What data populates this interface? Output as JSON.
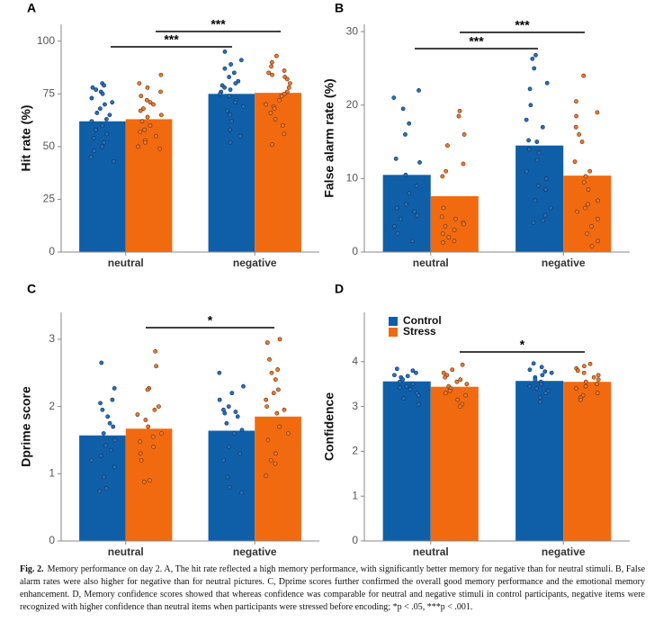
{
  "chart_data": [
    {
      "type": "bar",
      "panel": "A",
      "y_label": "Hit rate (%)",
      "categories": [
        "neutral",
        "negative"
      ],
      "ylim": [
        0,
        108
      ],
      "yticks": [
        0,
        25,
        50,
        75,
        100
      ],
      "series": [
        {
          "color": "#0f5fa8",
          "values": [
            62,
            75
          ],
          "points": [
            [
              80,
              79,
              78,
              77,
              76,
              75,
              73,
              71,
              70,
              68,
              66,
              65,
              63,
              62,
              60,
              58,
              56,
              54,
              52,
              50,
              48,
              45,
              43
            ],
            [
              95,
              91,
              89,
              87,
              85,
              83,
              81,
              80,
              79,
              78,
              77,
              76,
              75,
              74,
              72,
              71,
              69,
              67,
              65,
              62,
              58,
              55,
              52
            ]
          ]
        },
        {
          "color": "#f26a10",
          "values": [
            63,
            75.5
          ],
          "points": [
            [
              84,
              80,
              78,
              76,
              74,
              72,
              71,
              70,
              68,
              67,
              65,
              64,
              62,
              60,
              58,
              57,
              55,
              53,
              52,
              50,
              49
            ],
            [
              93,
              90,
              88,
              86,
              85,
              84,
              83,
              82,
              80,
              78,
              76,
              75,
              74,
              72,
              70,
              69,
              68,
              66,
              63,
              60,
              56,
              51
            ]
          ]
        }
      ],
      "annotations": [
        {
          "text": "***"
        },
        {
          "text": "***"
        }
      ]
    },
    {
      "type": "bar",
      "panel": "B",
      "y_label": "False alarm rate (%)",
      "categories": [
        "neutral",
        "negative"
      ],
      "ylim": [
        0,
        31
      ],
      "yticks": [
        0,
        10,
        20,
        30
      ],
      "series": [
        {
          "color": "#0f5fa8",
          "values": [
            10.5,
            14.5
          ],
          "points": [
            [
              22,
              21,
              19.5,
              17.5,
              16,
              12.7,
              12.2,
              10.5,
              9,
              8,
              6.5,
              6,
              5.5,
              5,
              4.5,
              3.5,
              2.5,
              1.5
            ],
            [
              26.8,
              26.3,
              25,
              23,
              22.2,
              20,
              18,
              17,
              15.2,
              15,
              14,
              13.5,
              12.5,
              11,
              10,
              9,
              8.5,
              7,
              6,
              5,
              4.3,
              4
            ]
          ]
        },
        {
          "color": "#f26a10",
          "values": [
            7.6,
            10.4
          ],
          "points": [
            [
              19.2,
              18.5,
              16,
              14.5,
              12,
              11,
              10.3,
              6,
              4.8,
              4.5,
              4,
              3.8,
              3.5,
              3,
              2.5,
              2,
              1.5,
              1.3
            ],
            [
              24,
              20.5,
              19,
              18.5,
              17,
              16,
              15,
              12.3,
              11,
              10.3,
              9.5,
              8.5,
              7,
              6.5,
              6,
              5.5,
              4.5,
              3.5,
              2.5,
              1.5,
              0.8
            ]
          ]
        }
      ],
      "annotations": [
        {
          "text": "***"
        },
        {
          "text": "***"
        }
      ]
    },
    {
      "type": "bar",
      "panel": "C",
      "y_label": "Dprime score",
      "categories": [
        "neutral",
        "negative"
      ],
      "ylim": [
        0,
        3.4
      ],
      "yticks": [
        0,
        1,
        2,
        3
      ],
      "series": [
        {
          "color": "#0f5fa8",
          "values": [
            1.57,
            1.64
          ],
          "points": [
            [
              2.65,
              2.27,
              2.1,
              2.05,
              1.95,
              1.85,
              1.75,
              1.7,
              1.6,
              1.5,
              1.42,
              1.35,
              1.27,
              1.2,
              1.1,
              0.95,
              0.78,
              0.74
            ],
            [
              2.5,
              2.3,
              2.2,
              2.1,
              2.0,
              1.95,
              1.92,
              1.9,
              1.85,
              1.75,
              1.65,
              1.6,
              1.4,
              1.3,
              1.2,
              0.95,
              0.8,
              0.72
            ]
          ]
        },
        {
          "color": "#f26a10",
          "values": [
            1.67,
            1.85
          ],
          "points": [
            [
              2.82,
              2.6,
              2.27,
              2.25,
              2.0,
              1.95,
              1.88,
              1.8,
              1.7,
              1.6,
              1.55,
              1.48,
              1.4,
              1.3,
              1.2,
              0.9,
              0.88
            ],
            [
              3.0,
              2.95,
              2.7,
              2.55,
              2.5,
              2.4,
              2.25,
              2.2,
              2.1,
              2.0,
              1.95,
              1.9,
              1.7,
              1.6,
              1.5,
              1.3,
              1.2,
              1.15,
              0.97
            ]
          ]
        }
      ],
      "annotations": [
        {
          "text": "*"
        }
      ]
    },
    {
      "type": "bar",
      "panel": "D",
      "y_label": "Confidence",
      "categories": [
        "neutral",
        "negative"
      ],
      "ylim": [
        0,
        5.1
      ],
      "yticks": [
        0,
        1,
        2,
        3,
        4
      ],
      "legend": "top-left",
      "series": [
        {
          "name": "Control",
          "color": "#0f5fa8",
          "values": [
            3.56,
            3.57
          ],
          "points": [
            [
              3.84,
              3.8,
              3.75,
              3.7,
              3.68,
              3.65,
              3.6,
              3.55,
              3.5,
              3.45,
              3.42,
              3.38,
              3.3,
              3.25,
              3.18,
              3.05
            ],
            [
              3.96,
              3.88,
              3.82,
              3.78,
              3.75,
              3.7,
              3.65,
              3.6,
              3.55,
              3.5,
              3.45,
              3.4,
              3.35,
              3.3,
              3.2,
              3.1
            ]
          ]
        },
        {
          "name": "Stress",
          "color": "#f26a10",
          "values": [
            3.44,
            3.55
          ],
          "points": [
            [
              3.93,
              3.82,
              3.75,
              3.7,
              3.65,
              3.6,
              3.55,
              3.5,
              3.45,
              3.4,
              3.35,
              3.3,
              3.25,
              3.15,
              3.05,
              3.0
            ],
            [
              3.95,
              3.9,
              3.85,
              3.8,
              3.75,
              3.7,
              3.65,
              3.6,
              3.55,
              3.5,
              3.45,
              3.4,
              3.3,
              3.25,
              3.2,
              3.15
            ]
          ]
        }
      ],
      "annotations": [
        {
          "text": "*"
        }
      ]
    }
  ],
  "caption": {
    "label": "Fig. 2.",
    "text": "Memory performance on day 2. A, The hit rate reflected a high memory performance, with significantly better memory for negative than for neutral stimuli. B, False alarm rates were also higher for negative than for neutral pictures. C, Dprime scores further confirmed the overall good memory performance and the emotional memory enhancement. D, Memory confidence scores showed that whereas confidence was comparable for neutral and negative stimuli in control participants, negative items were recognized with higher confidence than neutral items when participants were stressed before encoding; *p < .05, ***p < .001."
  }
}
